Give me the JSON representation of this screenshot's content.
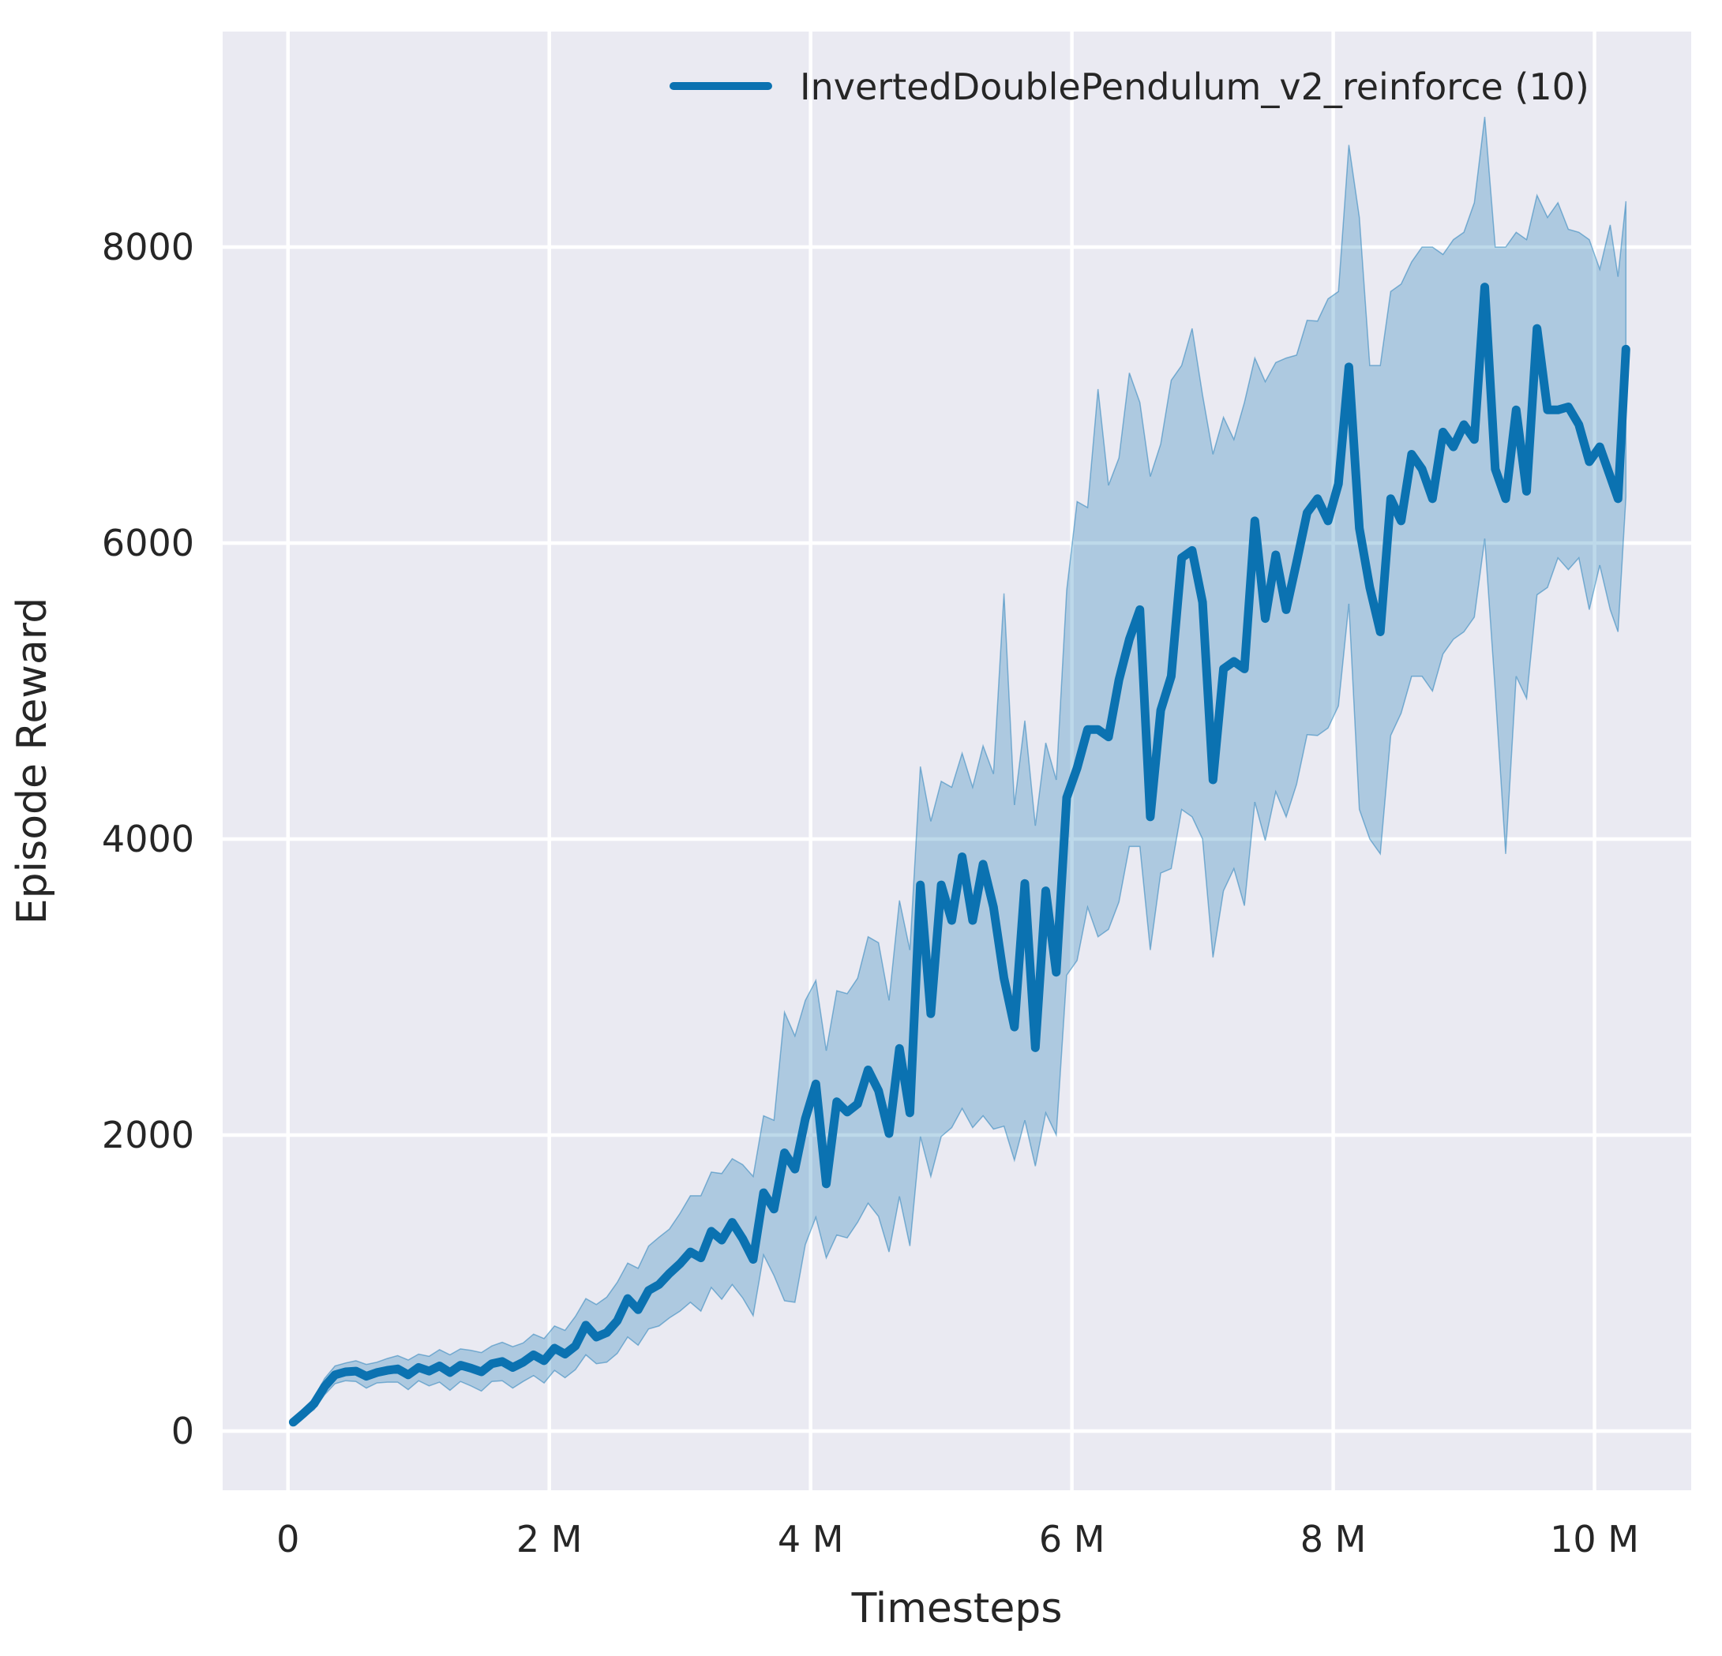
{
  "chart_data": {
    "type": "line",
    "title": "",
    "xlabel": "Timesteps",
    "ylabel": "Episode Reward",
    "legend": {
      "label": "InvertedDoublePendulum_v2_reinforce (10)",
      "position": "upper center-right",
      "frame": false
    },
    "x_unit": "millions of timesteps",
    "grid": true,
    "xlim": [
      -0.5,
      10.74
    ],
    "ylim": [
      -400,
      9456
    ],
    "x_ticks": [
      {
        "value": 0,
        "label": "0"
      },
      {
        "value": 2,
        "label": "2 M"
      },
      {
        "value": 4,
        "label": "4 M"
      },
      {
        "value": 6,
        "label": "6 M"
      },
      {
        "value": 8,
        "label": "8 M"
      },
      {
        "value": 10,
        "label": "10 M"
      }
    ],
    "y_ticks": [
      {
        "value": 0,
        "label": "0"
      },
      {
        "value": 2000,
        "label": "2000"
      },
      {
        "value": 4000,
        "label": "4000"
      },
      {
        "value": 6000,
        "label": "6000"
      },
      {
        "value": 8000,
        "label": "8000"
      }
    ],
    "colors": {
      "line": "#0b72b1",
      "band": "rgba(11,114,177,0.27)",
      "plot_background": "#eaeaf2",
      "grid": "#ffffff",
      "text": "#262626"
    },
    "series": [
      {
        "name": "InvertedDoublePendulum_v2_reinforce (10)",
        "x": [
          0.04,
          0.12,
          0.2,
          0.28,
          0.36,
          0.44,
          0.52,
          0.6,
          0.68,
          0.76,
          0.84,
          0.92,
          1.0,
          1.08,
          1.16,
          1.24,
          1.32,
          1.4,
          1.48,
          1.56,
          1.64,
          1.72,
          1.8,
          1.88,
          1.96,
          2.04,
          2.12,
          2.2,
          2.28,
          2.36,
          2.44,
          2.52,
          2.6,
          2.68,
          2.76,
          2.84,
          2.92,
          3.0,
          3.08,
          3.16,
          3.24,
          3.32,
          3.4,
          3.48,
          3.56,
          3.64,
          3.72,
          3.8,
          3.88,
          3.96,
          4.04,
          4.12,
          4.2,
          4.28,
          4.36,
          4.44,
          4.52,
          4.6,
          4.68,
          4.76,
          4.84,
          4.92,
          5.0,
          5.08,
          5.16,
          5.24,
          5.32,
          5.4,
          5.48,
          5.56,
          5.64,
          5.72,
          5.8,
          5.88,
          5.96,
          6.04,
          6.12,
          6.2,
          6.28,
          6.36,
          6.44,
          6.52,
          6.6,
          6.68,
          6.76,
          6.84,
          6.92,
          7.0,
          7.08,
          7.16,
          7.24,
          7.32,
          7.4,
          7.48,
          7.56,
          7.64,
          7.72,
          7.8,
          7.88,
          7.96,
          8.04,
          8.12,
          8.2,
          8.28,
          8.36,
          8.44,
          8.52,
          8.6,
          8.68,
          8.76,
          8.84,
          8.92,
          9.0,
          9.08,
          9.16,
          9.24,
          9.32,
          9.4,
          9.48,
          9.56,
          9.64,
          9.72,
          9.8,
          9.88,
          9.96,
          10.04,
          10.12,
          10.18,
          10.24
        ],
        "mean": [
          60,
          120,
          185,
          300,
          380,
          400,
          405,
          370,
          395,
          410,
          420,
          380,
          430,
          405,
          440,
          395,
          445,
          425,
          400,
          455,
          470,
          430,
          465,
          515,
          475,
          560,
          520,
          575,
          715,
          635,
          665,
          745,
          895,
          820,
          950,
          990,
          1065,
          1130,
          1210,
          1170,
          1350,
          1290,
          1410,
          1300,
          1160,
          1610,
          1500,
          1880,
          1770,
          2110,
          2345,
          1670,
          2225,
          2155,
          2210,
          2440,
          2300,
          2010,
          2585,
          2150,
          3690,
          2820,
          3690,
          3450,
          3880,
          3450,
          3830,
          3540,
          3060,
          2730,
          3700,
          2590,
          3650,
          3100,
          4280,
          4480,
          4740,
          4740,
          4690,
          5075,
          5350,
          5550,
          4150,
          4870,
          5100,
          5900,
          5950,
          5600,
          4400,
          5150,
          5200,
          5150,
          6150,
          5490,
          5920,
          5550,
          5870,
          6205,
          6300,
          6150,
          6400,
          7190,
          6100,
          5700,
          5400,
          6300,
          6150,
          6600,
          6500,
          6300,
          6750,
          6650,
          6800,
          6700,
          7730,
          6500,
          6300,
          6900,
          6350,
          7450,
          6900,
          6900,
          6920,
          6800,
          6550,
          6650,
          6450,
          6300,
          7310
        ],
        "band_above": [
          15,
          25,
          40,
          55,
          60,
          60,
          70,
          80,
          70,
          80,
          90,
          100,
          90,
          100,
          110,
          120,
          110,
          120,
          130,
          120,
          130,
          140,
          130,
          140,
          150,
          150,
          160,
          200,
          180,
          220,
          240,
          260,
          240,
          280,
          300,
          320,
          300,
          340,
          380,
          420,
          400,
          450,
          430,
          500,
          560,
          520,
          600,
          950,
          900,
          800,
          700,
          900,
          750,
          800,
          850,
          900,
          1000,
          900,
          1000,
          1100,
          800,
          1300,
          700,
          900,
          700,
          900,
          800,
          900,
          2600,
          1500,
          1100,
          1500,
          1000,
          1300,
          1400,
          1800,
          1500,
          2300,
          1700,
          1500,
          1800,
          1400,
          2300,
          1800,
          2000,
          1300,
          1500,
          1400,
          2200,
          1700,
          1500,
          1800,
          1100,
          1600,
          1300,
          1700,
          1400,
          1300,
          1200,
          1500,
          1300,
          1500,
          2100,
          1500,
          1800,
          1400,
          1600,
          1300,
          1500,
          1700,
          1200,
          1400,
          1300,
          1600,
          1150,
          1500,
          1700,
          1200,
          1700,
          900,
          1300,
          1400,
          1200,
          1300,
          1500,
          1200,
          1700,
          1500,
          1000
        ],
        "band_below": [
          15,
          25,
          40,
          55,
          60,
          60,
          70,
          80,
          70,
          80,
          90,
          100,
          90,
          100,
          110,
          120,
          110,
          120,
          130,
          120,
          130,
          140,
          130,
          140,
          150,
          150,
          160,
          160,
          200,
          180,
          200,
          220,
          260,
          240,
          260,
          280,
          300,
          320,
          340,
          360,
          380,
          400,
          420,
          400,
          380,
          420,
          450,
          1000,
          900,
          850,
          900,
          500,
          900,
          850,
          800,
          900,
          850,
          800,
          1000,
          900,
          1700,
          1100,
          1700,
          1400,
          1700,
          1400,
          1700,
          1500,
          1000,
          900,
          1600,
          800,
          1500,
          1100,
          1200,
          1300,
          1200,
          1400,
          1300,
          1500,
          1400,
          1600,
          900,
          1100,
          1300,
          1700,
          1800,
          1600,
          1200,
          1500,
          1400,
          1600,
          1900,
          1500,
          1600,
          1400,
          1500,
          1500,
          1600,
          1400,
          1500,
          1600,
          1900,
          1700,
          1500,
          1600,
          1300,
          1500,
          1400,
          1300,
          1500,
          1300,
          1400,
          1200,
          1700,
          1500,
          2400,
          1800,
          1400,
          1800,
          1200,
          1000,
          1100,
          900,
          1000,
          800,
          900,
          900,
          1000
        ]
      }
    ]
  }
}
